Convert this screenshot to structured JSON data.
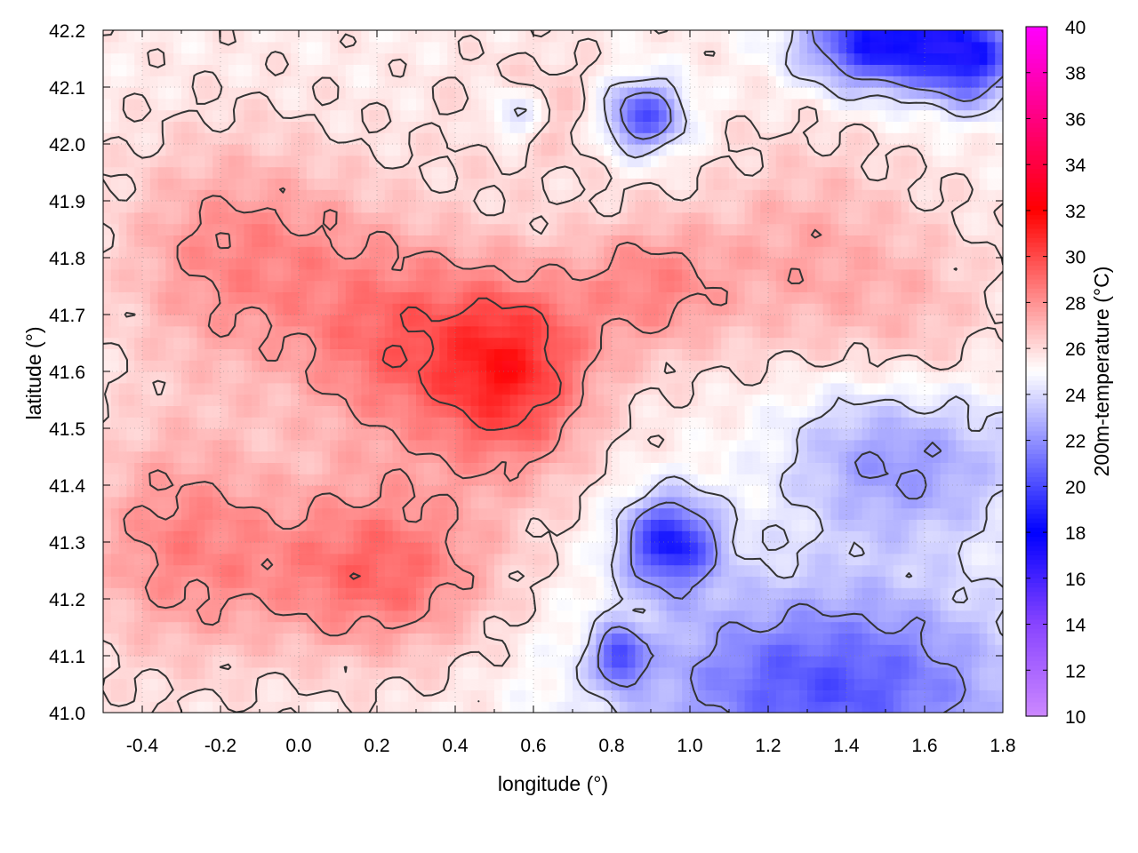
{
  "chart_data": {
    "type": "heatmap",
    "title": "",
    "xlabel": "longitude (°)",
    "ylabel": "latitude (°)",
    "colorbar_label": "200m-temperature (°C)",
    "xlim": [
      -0.5,
      1.8
    ],
    "ylim": [
      41.0,
      42.2
    ],
    "x_ticks": [
      -0.4,
      -0.2,
      0.0,
      0.2,
      0.4,
      0.6,
      0.8,
      1.0,
      1.2,
      1.4,
      1.6,
      1.8
    ],
    "x_tick_labels": [
      "-0.4",
      "-0.2",
      "0.0",
      "0.2",
      "0.4",
      "0.6",
      "0.8",
      "1.0",
      "1.2",
      "1.4",
      "1.6",
      "1.8"
    ],
    "y_ticks": [
      41.0,
      41.1,
      41.2,
      41.3,
      41.4,
      41.5,
      41.6,
      41.7,
      41.8,
      41.9,
      42.0,
      42.1,
      42.2
    ],
    "y_tick_labels": [
      "41.0",
      "41.1",
      "41.2",
      "41.3",
      "41.4",
      "41.5",
      "41.6",
      "41.7",
      "41.8",
      "41.9",
      "42.0",
      "42.1",
      "42.2"
    ],
    "colorbar_range": [
      10,
      40
    ],
    "colorbar_ticks": [
      10,
      12,
      14,
      16,
      18,
      20,
      22,
      24,
      26,
      28,
      30,
      32,
      34,
      36,
      38,
      40
    ],
    "colorbar_tick_labels": [
      "10",
      "12",
      "14",
      "16",
      "18",
      "20",
      "22",
      "24",
      "26",
      "28",
      "30",
      "32",
      "34",
      "36",
      "38",
      "40"
    ],
    "colormap": [
      {
        "value": 10,
        "color": "#cc88ff"
      },
      {
        "value": 14,
        "color": "#8844ff"
      },
      {
        "value": 18,
        "color": "#0000ff"
      },
      {
        "value": 25,
        "color": "#ffffff"
      },
      {
        "value": 32,
        "color": "#ff0000"
      },
      {
        "value": 36,
        "color": "#ff0080"
      },
      {
        "value": 40,
        "color": "#ff00ff"
      }
    ],
    "grid": true,
    "contour_color": "#333333",
    "temperature_blobs": [
      {
        "lon": 0.55,
        "lat": 41.6,
        "sx": 0.2,
        "sy": 0.17,
        "amp": 5.5
      },
      {
        "lon": 0.25,
        "lat": 41.65,
        "sx": 0.25,
        "sy": 0.2,
        "amp": 3.5
      },
      {
        "lon": -0.15,
        "lat": 41.8,
        "sx": 0.3,
        "sy": 0.2,
        "amp": 3.0
      },
      {
        "lon": 0.2,
        "lat": 41.25,
        "sx": 0.3,
        "sy": 0.15,
        "amp": 4.0
      },
      {
        "lon": -0.3,
        "lat": 41.3,
        "sx": 0.25,
        "sy": 0.2,
        "amp": 3.0
      },
      {
        "lon": 0.9,
        "lat": 41.75,
        "sx": 0.2,
        "sy": 0.12,
        "amp": 3.0
      },
      {
        "lon": 1.3,
        "lat": 41.8,
        "sx": 0.25,
        "sy": 0.2,
        "amp": 2.0
      },
      {
        "lon": 1.6,
        "lat": 41.65,
        "sx": 0.2,
        "sy": 0.2,
        "amp": 1.5
      },
      {
        "lon": 0.6,
        "lat": 42.05,
        "sx": 0.2,
        "sy": 0.1,
        "amp": 1.5
      },
      {
        "lon": 1.35,
        "lat": 41.05,
        "sx": 0.5,
        "sy": 0.18,
        "amp": -5.5
      },
      {
        "lon": 1.55,
        "lat": 41.45,
        "sx": 0.3,
        "sy": 0.15,
        "amp": -4.0
      },
      {
        "lon": 0.95,
        "lat": 41.3,
        "sx": 0.12,
        "sy": 0.08,
        "amp": -7.0
      },
      {
        "lon": 1.5,
        "lat": 42.18,
        "sx": 0.2,
        "sy": 0.08,
        "amp": -8.0
      },
      {
        "lon": 0.88,
        "lat": 42.05,
        "sx": 0.1,
        "sy": 0.06,
        "amp": -6.0
      },
      {
        "lon": 1.72,
        "lat": 42.15,
        "sx": 0.12,
        "sy": 0.08,
        "amp": -6.0
      },
      {
        "lon": 0.55,
        "lat": 42.05,
        "sx": 0.08,
        "sy": 0.05,
        "amp": -3.0
      },
      {
        "lon": 0.82,
        "lat": 41.1,
        "sx": 0.06,
        "sy": 0.05,
        "amp": -5.0
      }
    ],
    "base_temperature": 25.5,
    "contour_levels": [
      22,
      24,
      26,
      28,
      30
    ]
  }
}
